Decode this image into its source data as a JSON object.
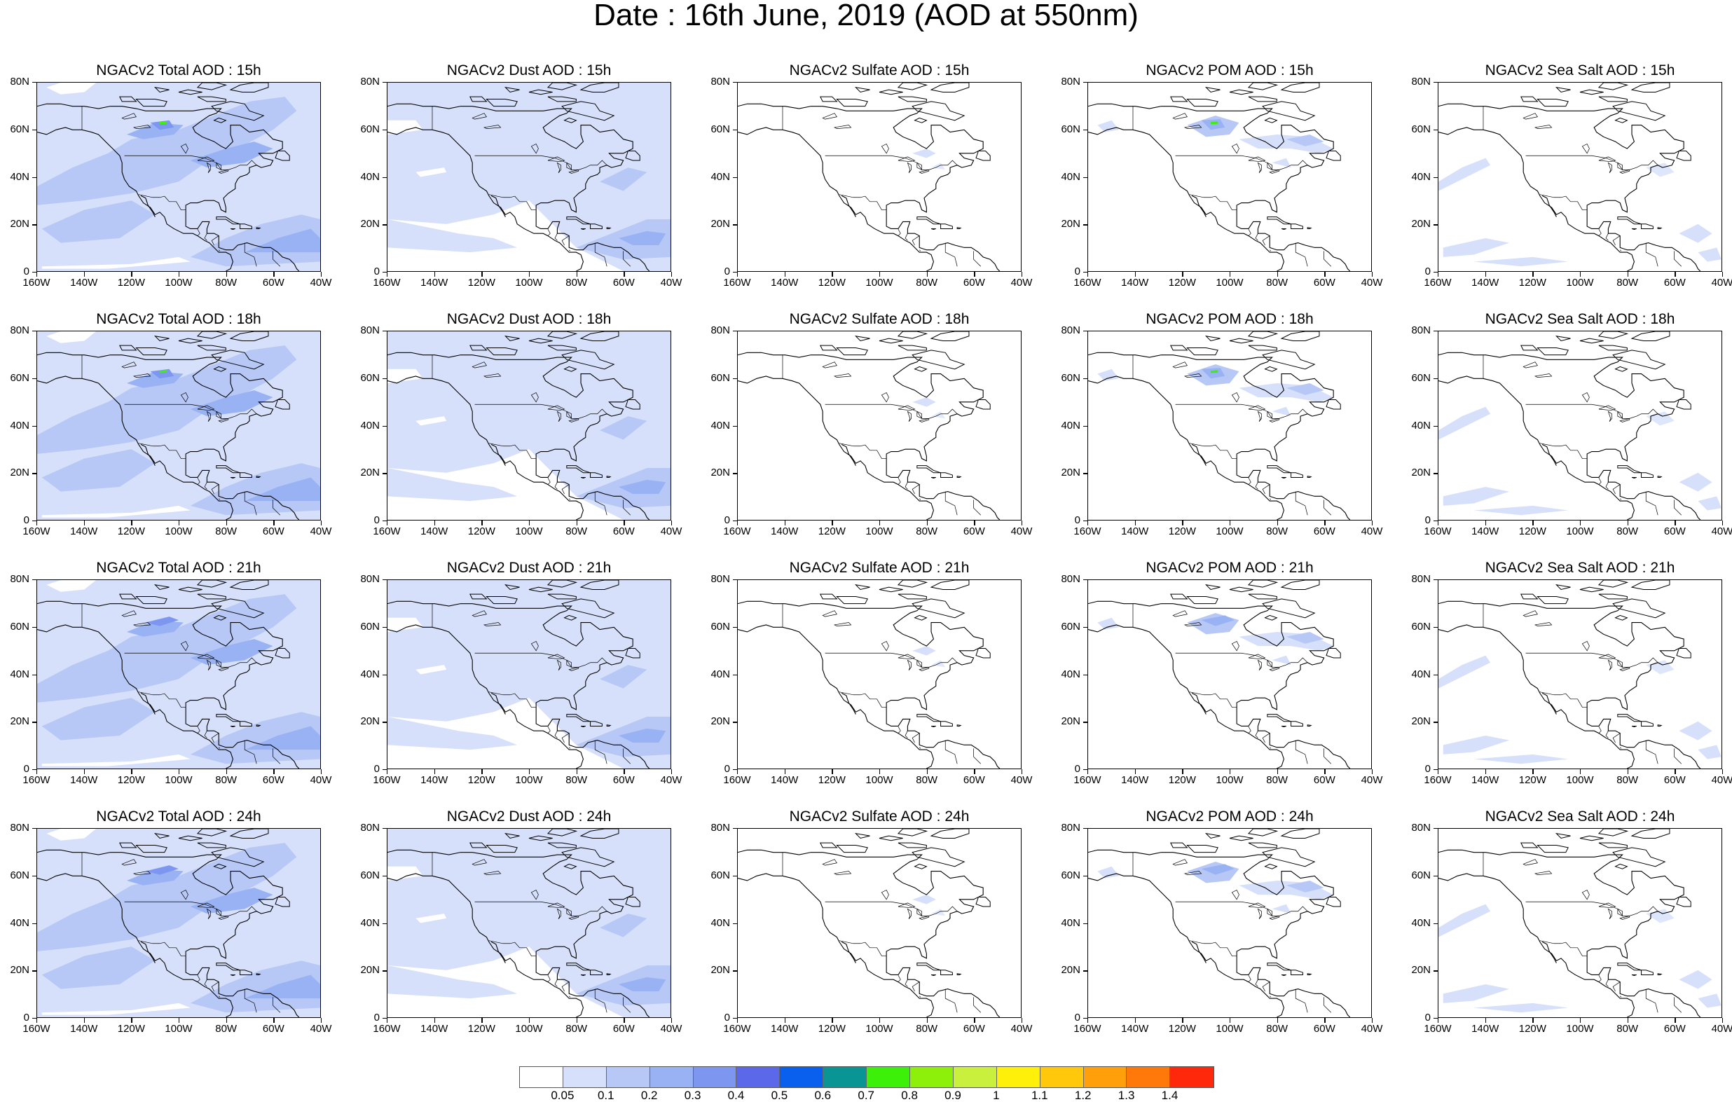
{
  "figure": {
    "title": "Date : 16th June, 2019 (AOD at 550nm)"
  },
  "axes": {
    "x_ticks": [
      "160W",
      "140W",
      "120W",
      "100W",
      "80W",
      "60W",
      "40W"
    ],
    "x_values": [
      -160,
      -140,
      -120,
      -100,
      -80,
      -60,
      -40
    ],
    "y_ticks": [
      "80N",
      "60N",
      "40N",
      "20N",
      "0"
    ],
    "y_values": [
      80,
      60,
      40,
      20,
      0
    ],
    "lon_range": [
      -160,
      -40
    ],
    "lat_range": [
      0,
      80
    ]
  },
  "panels": [
    {
      "title": "NGACv2 Total AOD : 15h",
      "species": "total",
      "hour": 15
    },
    {
      "title": "NGACv2 Dust AOD : 15h",
      "species": "dust",
      "hour": 15
    },
    {
      "title": "NGACv2 Sulfate AOD : 15h",
      "species": "sulfate",
      "hour": 15
    },
    {
      "title": "NGACv2 POM AOD : 15h",
      "species": "pom",
      "hour": 15
    },
    {
      "title": "NGACv2 Sea Salt AOD : 15h",
      "species": "seasalt",
      "hour": 15
    },
    {
      "title": "NGACv2 Total AOD : 18h",
      "species": "total",
      "hour": 18
    },
    {
      "title": "NGACv2 Dust AOD : 18h",
      "species": "dust",
      "hour": 18
    },
    {
      "title": "NGACv2 Sulfate AOD : 18h",
      "species": "sulfate",
      "hour": 18
    },
    {
      "title": "NGACv2 POM AOD : 18h",
      "species": "pom",
      "hour": 18
    },
    {
      "title": "NGACv2 Sea Salt AOD : 18h",
      "species": "seasalt",
      "hour": 18
    },
    {
      "title": "NGACv2 Total AOD : 21h",
      "species": "total",
      "hour": 21
    },
    {
      "title": "NGACv2 Dust AOD : 21h",
      "species": "dust",
      "hour": 21
    },
    {
      "title": "NGACv2 Sulfate AOD : 21h",
      "species": "sulfate",
      "hour": 21
    },
    {
      "title": "NGACv2 POM AOD : 21h",
      "species": "pom",
      "hour": 21
    },
    {
      "title": "NGACv2 Sea Salt AOD : 21h",
      "species": "seasalt",
      "hour": 21
    },
    {
      "title": "NGACv2 Total AOD : 24h",
      "species": "total",
      "hour": 24
    },
    {
      "title": "NGACv2 Dust AOD : 24h",
      "species": "dust",
      "hour": 24
    },
    {
      "title": "NGACv2 Sulfate AOD : 24h",
      "species": "sulfate",
      "hour": 24
    },
    {
      "title": "NGACv2 POM AOD : 24h",
      "species": "pom",
      "hour": 24
    },
    {
      "title": "NGACv2 Sea Salt  AOD : 24h",
      "species": "seasalt",
      "hour": 24
    }
  ],
  "colorbar": {
    "labels": [
      "0.05",
      "0.1",
      "0.2",
      "0.3",
      "0.4",
      "0.5",
      "0.6",
      "0.7",
      "0.8",
      "0.9",
      "1",
      "1.1",
      "1.2",
      "1.3",
      "1.4"
    ],
    "colors": [
      "#ffffff",
      "#d6e0fa",
      "#b7c8f6",
      "#99b2f3",
      "#7d96ef",
      "#5c68ea",
      "#0a60ee",
      "#0a9595",
      "#3cf00a",
      "#8cf00a",
      "#c8f03c",
      "#fff00a",
      "#ffc80a",
      "#ffa00a",
      "#ff780a",
      "#ff280a"
    ]
  },
  "levels": {
    "l1": "#d6e0fa",
    "l2": "#b7c8f6",
    "l3": "#99b2f3",
    "l4": "#7d96ef",
    "green": "#3cf00a",
    "land_outline": "#000000"
  }
}
